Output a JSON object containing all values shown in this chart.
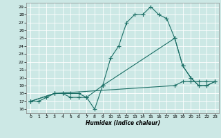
{
  "xlabel": "Humidex (Indice chaleur)",
  "ylabel": "",
  "bg_color": "#cce8e5",
  "grid_color": "#b0d4d0",
  "line_color": "#1a6e65",
  "xlim": [
    -0.5,
    23.5
  ],
  "ylim": [
    15.5,
    29.5
  ],
  "xticks": [
    0,
    1,
    2,
    3,
    4,
    5,
    6,
    7,
    8,
    9,
    10,
    11,
    12,
    13,
    14,
    15,
    16,
    17,
    18,
    19,
    20,
    21,
    22,
    23
  ],
  "yticks": [
    16,
    17,
    18,
    19,
    20,
    21,
    22,
    23,
    24,
    25,
    26,
    27,
    28,
    29
  ],
  "line1_x": [
    0,
    1,
    2,
    3,
    4,
    5,
    6,
    7,
    8,
    9,
    10,
    11,
    12,
    13,
    14,
    15,
    16,
    17,
    18,
    19,
    20,
    21,
    22,
    23
  ],
  "line1_y": [
    17,
    17,
    17.5,
    18,
    18,
    17.5,
    17.5,
    17.5,
    16,
    19,
    22.5,
    24,
    27,
    28,
    28,
    29,
    28,
    27.5,
    25,
    21.5,
    20,
    19,
    19,
    19.5
  ],
  "line2_x": [
    0,
    3,
    4,
    5,
    6,
    7,
    9,
    18,
    19,
    20,
    21,
    22,
    23
  ],
  "line2_y": [
    17,
    18,
    18,
    18,
    18,
    17.5,
    19,
    25,
    21.5,
    20,
    19,
    19,
    19.5
  ],
  "line3_x": [
    0,
    3,
    18,
    19,
    20,
    21,
    22,
    23
  ],
  "line3_y": [
    17,
    18,
    19,
    19.5,
    19.5,
    19.5,
    19.5,
    19.5
  ]
}
